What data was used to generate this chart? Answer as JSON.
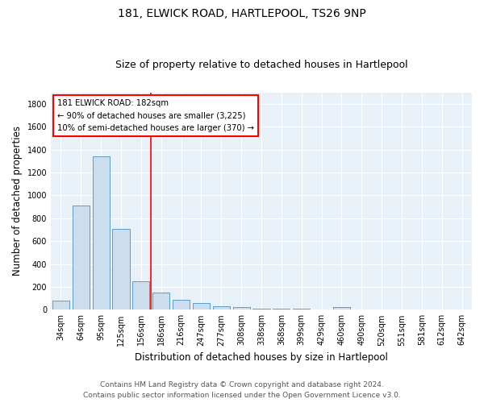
{
  "title": "181, ELWICK ROAD, HARTLEPOOL, TS26 9NP",
  "subtitle": "Size of property relative to detached houses in Hartlepool",
  "xlabel": "Distribution of detached houses by size in Hartlepool",
  "ylabel": "Number of detached properties",
  "categories": [
    "34sqm",
    "64sqm",
    "95sqm",
    "125sqm",
    "156sqm",
    "186sqm",
    "216sqm",
    "247sqm",
    "277sqm",
    "308sqm",
    "338sqm",
    "368sqm",
    "399sqm",
    "429sqm",
    "460sqm",
    "490sqm",
    "520sqm",
    "551sqm",
    "581sqm",
    "612sqm",
    "642sqm"
  ],
  "values": [
    80,
    910,
    1340,
    705,
    250,
    150,
    85,
    55,
    30,
    20,
    12,
    8,
    12,
    0,
    20,
    0,
    0,
    0,
    0,
    0,
    0
  ],
  "bar_color": "#ccdded",
  "bar_edge_color": "#5b9dc9",
  "annotation_line1": "181 ELWICK ROAD: 182sqm",
  "annotation_line2": "← 90% of detached houses are smaller (3,225)",
  "annotation_line3": "10% of semi-detached houses are larger (370) →",
  "annotation_box_color": "white",
  "annotation_border_color": "red",
  "ylim": [
    0,
    1900
  ],
  "yticks": [
    0,
    200,
    400,
    600,
    800,
    1000,
    1200,
    1400,
    1600,
    1800
  ],
  "background_color": "#e8f0f8",
  "footer_line1": "Contains HM Land Registry data © Crown copyright and database right 2024.",
  "footer_line2": "Contains public sector information licensed under the Open Government Licence v3.0.",
  "title_fontsize": 10,
  "subtitle_fontsize": 9,
  "axis_label_fontsize": 8.5,
  "tick_fontsize": 7,
  "footer_fontsize": 6.5
}
